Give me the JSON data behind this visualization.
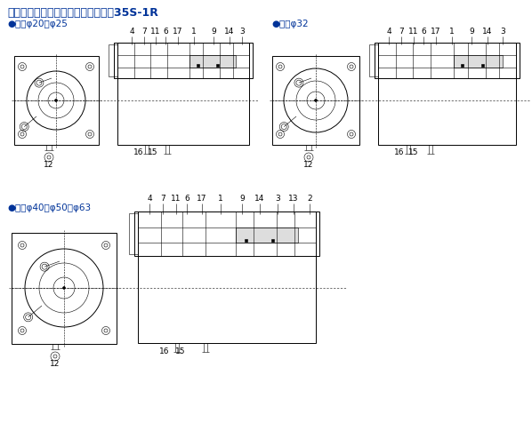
{
  "title": "複動形片ロッド／スイッチセット／35S-1R",
  "bg_color": "#ffffff",
  "line_color": "#000000",
  "blue_color": "#003399",
  "label_fontsize": 6.5,
  "title_fontsize": 9,
  "subtitle_fontsize": 7.5,
  "group1_label": "●内径φ20・φ25",
  "group2_label": "●内径φ32",
  "group3_label": "●内径φ40・φ50・φ63",
  "part_labels_small": [
    "4",
    "7",
    "11",
    "6",
    "17",
    "1",
    "9",
    "14",
    "3"
  ],
  "part_labels_large": [
    "4",
    "7",
    "11",
    "6",
    "17",
    "1",
    "9",
    "14",
    "3",
    "13",
    "2"
  ]
}
